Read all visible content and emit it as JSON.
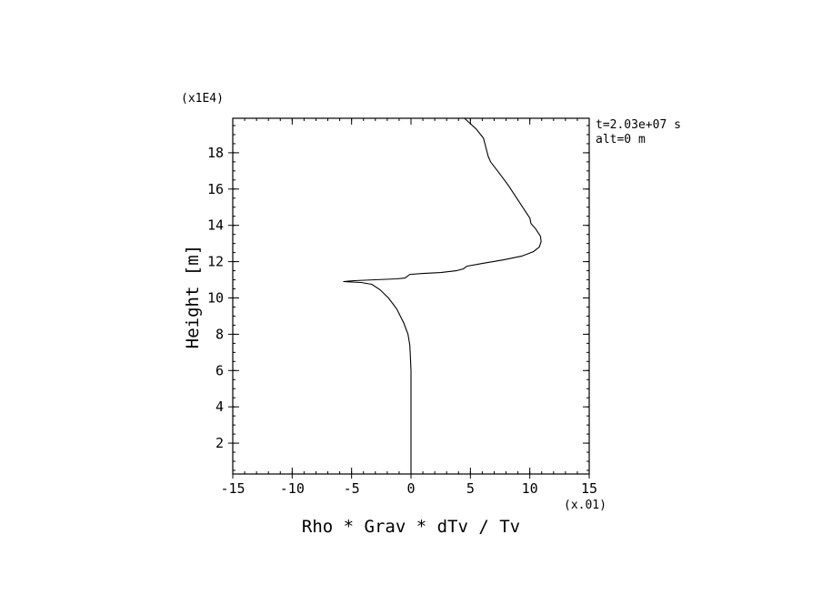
{
  "chart_data": {
    "type": "line",
    "xlabel": "Rho * Grav * dTv / Tv",
    "ylabel": "Height [m]",
    "x_multiplier": "(x.01)",
    "y_multiplier": "(x1E4)",
    "xlim": [
      -15,
      15
    ],
    "ylim": [
      0.3,
      19.9
    ],
    "x_ticks": [
      -15,
      -10,
      -5,
      0,
      5,
      10,
      15
    ],
    "y_ticks": [
      2,
      4,
      6,
      8,
      10,
      12,
      14,
      16,
      18
    ],
    "x_tick_labels": [
      "-15",
      "-10",
      "-5",
      "0",
      "5",
      "10",
      "15"
    ],
    "y_tick_labels": [
      "2",
      "4",
      "6",
      "8",
      "10",
      "12",
      "14",
      "16",
      "18"
    ],
    "x_minor_step": 1,
    "y_minor_step": 0.5,
    "annotations": [
      "t=2.03e+07 s",
      "alt=0 m"
    ],
    "grid": false,
    "series": [
      {
        "color": "#000000",
        "points": [
          [
            0.0,
            0.3
          ],
          [
            0.0,
            2.0
          ],
          [
            0.0,
            4.0
          ],
          [
            0.0,
            6.0
          ],
          [
            -0.05,
            6.8
          ],
          [
            -0.1,
            7.4
          ],
          [
            -0.25,
            8.0
          ],
          [
            -0.6,
            8.6
          ],
          [
            -1.2,
            9.4
          ],
          [
            -1.9,
            10.0
          ],
          [
            -2.6,
            10.45
          ],
          [
            -3.3,
            10.75
          ],
          [
            -4.2,
            10.85
          ],
          [
            -5.7,
            10.9
          ],
          [
            -4.8,
            10.95
          ],
          [
            -3.0,
            11.0
          ],
          [
            -1.2,
            11.05
          ],
          [
            -0.5,
            11.1
          ],
          [
            -0.1,
            11.3
          ],
          [
            1.0,
            11.35
          ],
          [
            2.5,
            11.4
          ],
          [
            3.8,
            11.5
          ],
          [
            4.4,
            11.6
          ],
          [
            4.7,
            11.75
          ],
          [
            6.0,
            11.9
          ],
          [
            7.8,
            12.1
          ],
          [
            9.3,
            12.3
          ],
          [
            10.3,
            12.55
          ],
          [
            10.8,
            12.8
          ],
          [
            10.95,
            13.1
          ],
          [
            10.9,
            13.4
          ],
          [
            10.5,
            13.8
          ],
          [
            10.1,
            14.1
          ],
          [
            10.0,
            14.4
          ],
          [
            9.6,
            14.8
          ],
          [
            8.9,
            15.5
          ],
          [
            8.2,
            16.2
          ],
          [
            7.4,
            16.9
          ],
          [
            6.7,
            17.5
          ],
          [
            6.5,
            17.8
          ],
          [
            6.3,
            18.3
          ],
          [
            6.1,
            18.8
          ],
          [
            5.5,
            19.3
          ],
          [
            4.5,
            19.9
          ]
        ]
      }
    ]
  }
}
